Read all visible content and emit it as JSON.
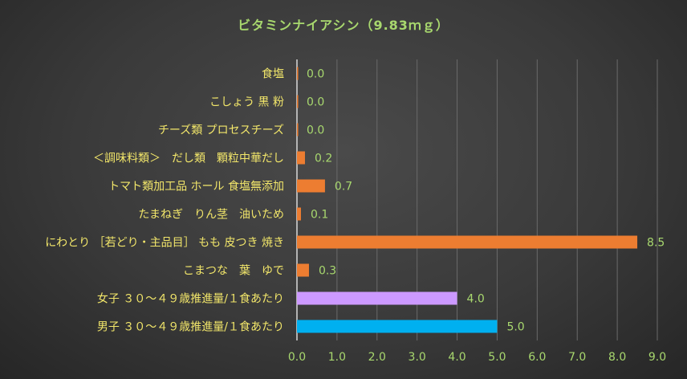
{
  "chart_data": {
    "type": "bar",
    "orientation": "horizontal",
    "title": "ビタミンナイアシン（9.83ｍｇ）",
    "categories": [
      "食塩",
      "こしょう 黒 粉",
      "チーズ類 プロセスチーズ",
      "＜調味料類＞　だし類　顆粒中華だし",
      "トマト類加工品 ホール 食塩無添加",
      "たまねぎ　りん茎　油いため",
      "にわとり ［若どり・主品目］ もも 皮つき 焼き",
      "こまつな　葉　ゆで",
      "女子 ３０～４９歳推進量/１食あたり",
      "男子 ３０～４９歳推進量/１食あたり"
    ],
    "values": [
      0.0,
      0.0,
      0.0,
      0.2,
      0.7,
      0.1,
      8.5,
      0.3,
      4.0,
      5.0
    ],
    "value_labels": [
      "0.0",
      "0.0",
      "0.0",
      "0.2",
      "0.7",
      "0.1",
      "8.5",
      "0.3",
      "4.0",
      "5.0"
    ],
    "bar_colors": [
      "#ed7d31",
      "#ed7d31",
      "#ed7d31",
      "#ed7d31",
      "#ed7d31",
      "#ed7d31",
      "#ed7d31",
      "#ed7d31",
      "#cc99ff",
      "#00b0f0"
    ],
    "xlim": [
      0,
      9
    ],
    "xticks": [
      "0.0",
      "1.0",
      "2.0",
      "3.0",
      "4.0",
      "5.0",
      "6.0",
      "7.0",
      "8.0",
      "9.0"
    ],
    "grid": "vertical",
    "legend": "none"
  }
}
